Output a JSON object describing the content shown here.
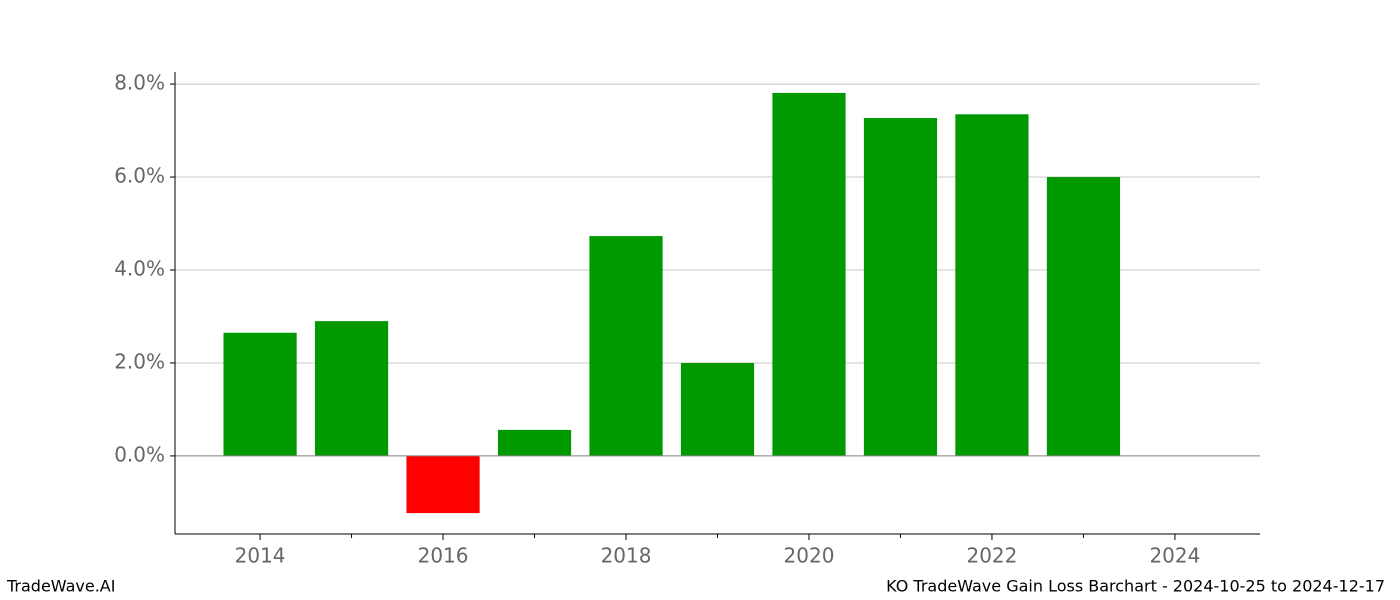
{
  "chart_data": {
    "type": "bar",
    "x": [
      2014,
      2015,
      2016,
      2017,
      2018,
      2019,
      2020,
      2021,
      2022,
      2023
    ],
    "values": [
      2.65,
      2.9,
      -1.23,
      0.56,
      4.73,
      2.0,
      7.81,
      7.27,
      7.35,
      6.0
    ],
    "colors": [
      "#009900",
      "#009900",
      "#ff0000",
      "#009900",
      "#009900",
      "#009900",
      "#009900",
      "#009900",
      "#009900",
      "#009900"
    ],
    "bar_width": 0.8,
    "xlim": [
      2013.07,
      2024.93
    ],
    "xticks": [
      2014,
      2016,
      2018,
      2020,
      2022,
      2024
    ],
    "xminor_ticks": [
      2015,
      2017,
      2019,
      2021,
      2023
    ],
    "ylim": [
      -1.68,
      8.26
    ],
    "yticks": [
      {
        "value": 0,
        "label": "0.0%"
      },
      {
        "value": 2,
        "label": "2.0%"
      },
      {
        "value": 4,
        "label": "4.0%"
      },
      {
        "value": 6,
        "label": "6.0%"
      },
      {
        "value": 8,
        "label": "8.0%"
      }
    ],
    "grid": true,
    "zero_line": true,
    "footer_left": "TradeWave.AI",
    "footer_right": "KO TradeWave Gain Loss Barchart - 2024-10-25 to 2024-12-17"
  }
}
